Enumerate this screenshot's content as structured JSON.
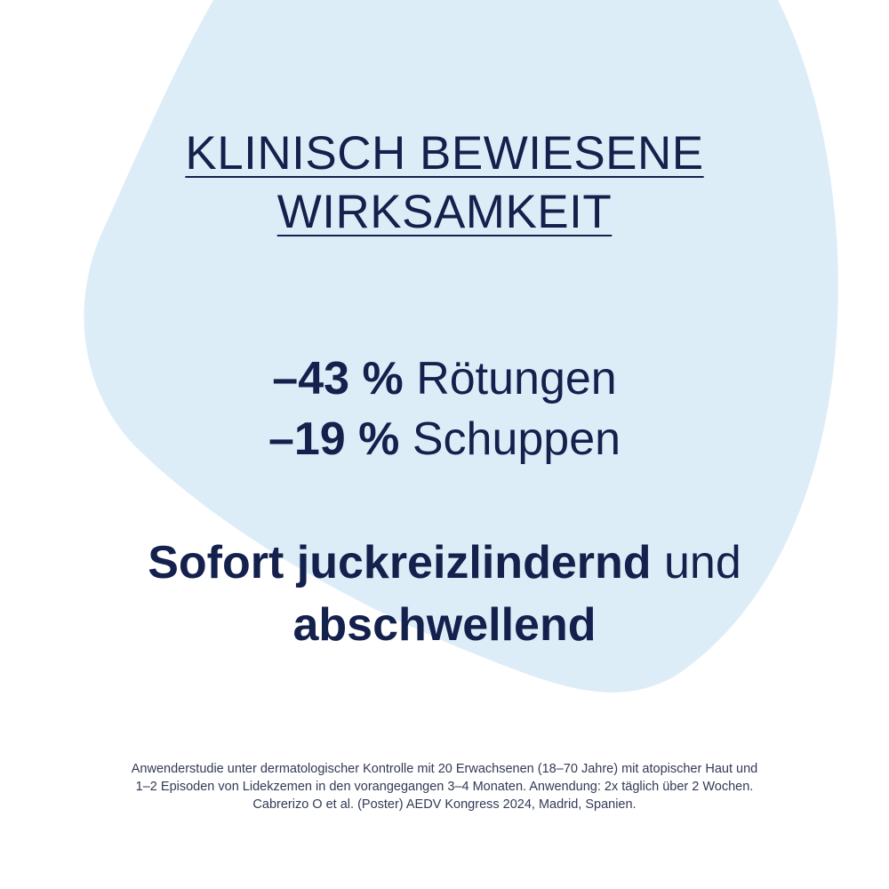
{
  "colors": {
    "blob": "#ddedf8",
    "text": "#15214d"
  },
  "title": {
    "line1": "KLINISCH BEWIESENE",
    "line2": "WIRKSAMKEIT"
  },
  "stats": [
    {
      "value": "–43 %",
      "label": "Rötungen"
    },
    {
      "value": "–19 %",
      "label": "Schuppen"
    }
  ],
  "claim": {
    "bold1": "Sofort juckreizlindernd",
    "normal": "und",
    "bold2": "abschwellend"
  },
  "footnote": {
    "line1": "Anwenderstudie unter dermatologischer Kontrolle mit 20 Erwachsenen (18–70 Jahre) mit atopischer Haut und",
    "line2": "1–2 Episoden von Lidekzemen in den vorangegangen 3–4 Monaten. Anwendung: 2x täglich über 2 Wochen.",
    "line3": "Cabrerizo O et al. (Poster) AEDV Kongress 2024, Madrid, Spanien."
  }
}
